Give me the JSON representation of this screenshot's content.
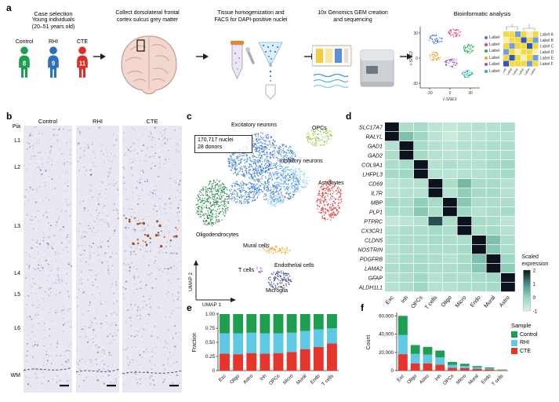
{
  "panel_labels": {
    "a": "a",
    "b": "b",
    "c": "c",
    "d": "d",
    "e": "e",
    "f": "f"
  },
  "panel_a": {
    "case_selection": {
      "title": "Case selection",
      "subtitle_lines": [
        "Young individuals",
        "(20–51 years old)"
      ],
      "groups": [
        {
          "name": "Control",
          "count": "8",
          "color": "#1e9e50"
        },
        {
          "name": "RHI",
          "count": "9",
          "color": "#2a6fc0"
        },
        {
          "name": "CTE",
          "count": "11",
          "color": "#d9312a"
        }
      ]
    },
    "step2_lines": [
      "Collect dorsolateral frontal",
      "cortex sulcus grey matter"
    ],
    "step3_lines": [
      "Tissue homogenization and",
      "FACS for DAPI-positive nuclei"
    ],
    "step4_lines": [
      "10x Genomics GEM creation",
      "and sequencing"
    ],
    "step5_title": "Bioinformatic analysis",
    "tsne": {
      "xlabel": "t-SNE1",
      "ylabel": "t-SNE2",
      "yticks": [
        "30",
        "0",
        "-30"
      ],
      "xticks": [
        "-30",
        "0",
        "30"
      ],
      "legend_entries": [
        "Label",
        "Label",
        "Label",
        "Label",
        "Label",
        "Label"
      ],
      "cluster_colors": [
        "#4a76d8",
        "#e0457b",
        "#2fae62",
        "#f0a32a",
        "#9057c8",
        "#27b5b0"
      ]
    },
    "mini_heatmap": {
      "row_labels": [
        "Label A",
        "Label B",
        "Label C",
        "Label D",
        "Label E",
        "Label F"
      ],
      "col_labels": [
        "Label",
        "Label",
        "Label",
        "Label",
        "Label",
        "Label"
      ],
      "palette": [
        "#f5d940",
        "#faf0b4",
        "#6f9fe0",
        "#2f58b8"
      ],
      "cells": [
        [
          0,
          0,
          2,
          0,
          1,
          0
        ],
        [
          1,
          0,
          0,
          3,
          0,
          2
        ],
        [
          0,
          2,
          0,
          0,
          3,
          0
        ],
        [
          2,
          0,
          1,
          0,
          0,
          1
        ],
        [
          0,
          3,
          0,
          1,
          0,
          2
        ],
        [
          3,
          0,
          0,
          0,
          2,
          0
        ]
      ]
    }
  },
  "panel_b": {
    "columns": [
      "Control",
      "RHI",
      "CTE"
    ],
    "layers": [
      "Pia",
      "L1",
      "L2",
      "L3",
      "L4",
      "L5",
      "L6",
      "WM"
    ]
  },
  "chart_data": [
    {
      "id": "umap-celltypes",
      "type": "scatter",
      "xlabel": "UMAP 1",
      "ylabel": "UMAP 2",
      "annotations": [
        "170,717 nuclei",
        "28 donors"
      ],
      "clusters": [
        {
          "name": "Excitatory neurons",
          "color": "#3579d8"
        },
        {
          "name": "Inhibitory neurons",
          "color": "#8fd0ec"
        },
        {
          "name": "OPCs",
          "color": "#97c93d"
        },
        {
          "name": "Astrocytes",
          "color": "#e22c2c"
        },
        {
          "name": "Oligodendrocytes",
          "color": "#1a7d3c"
        },
        {
          "name": "Mural cells",
          "color": "#f59b20"
        },
        {
          "name": "Endothelial cells",
          "color": "#e8b32a"
        },
        {
          "name": "T cells",
          "color": "#9b59c9"
        },
        {
          "name": "Microglia",
          "color": "#27348b"
        }
      ]
    },
    {
      "id": "marker-gene-heatmap",
      "type": "heatmap",
      "rows": [
        "SLC17A7",
        "RALYL",
        "GAD1",
        "GAD2",
        "COL9A1",
        "LHFPL3",
        "CD69",
        "IL7R",
        "MBP",
        "PLP1",
        "PTPRC",
        "CX3CR1",
        "CLDN5",
        "NOSTRIN",
        "PDGFRB",
        "LAMA2",
        "GFAP",
        "ALDH1L1"
      ],
      "columns": [
        "Exc",
        "Inh",
        "OPCs",
        "T cells",
        "Oligo",
        "Micro",
        "Endo",
        "Mural",
        "Astro"
      ],
      "legend_title_lines": [
        "Scaled",
        "expression"
      ],
      "legend_ticks": [
        2,
        1,
        0,
        -1
      ],
      "values": [
        [
          2.1,
          -0.3,
          -0.2,
          -0.5,
          -0.6,
          -0.5,
          -0.4,
          -0.4,
          -0.3
        ],
        [
          2.0,
          0.3,
          -0.1,
          -0.5,
          -0.7,
          -0.5,
          -0.5,
          -0.4,
          -0.4
        ],
        [
          -0.4,
          2.2,
          -0.2,
          -0.4,
          -0.5,
          -0.4,
          -0.4,
          -0.3,
          -0.3
        ],
        [
          -0.3,
          2.1,
          -0.2,
          -0.4,
          -0.5,
          -0.4,
          -0.4,
          -0.3,
          -0.3
        ],
        [
          -0.3,
          -0.2,
          2.2,
          -0.4,
          -0.3,
          -0.4,
          -0.4,
          -0.2,
          -0.1
        ],
        [
          -0.2,
          -0.1,
          2.1,
          -0.4,
          -0.5,
          -0.4,
          -0.4,
          -0.3,
          -0.2
        ],
        [
          -0.5,
          -0.4,
          -0.4,
          2.2,
          -0.3,
          0.4,
          -0.2,
          -0.2,
          -0.4
        ],
        [
          -0.5,
          -0.4,
          -0.4,
          2.2,
          -0.4,
          0.1,
          -0.2,
          -0.2,
          -0.4
        ],
        [
          -0.2,
          -0.3,
          0.1,
          -0.2,
          2.0,
          0.2,
          -0.3,
          -0.3,
          -0.3
        ],
        [
          -0.3,
          -0.3,
          0.2,
          -0.3,
          2.1,
          -0.1,
          -0.4,
          -0.3,
          -0.2
        ],
        [
          -0.6,
          -0.5,
          -0.4,
          1.5,
          -0.3,
          2.0,
          -0.2,
          -0.3,
          -0.5
        ],
        [
          -0.4,
          -0.3,
          -0.3,
          -0.2,
          -0.3,
          2.2,
          -0.3,
          -0.2,
          -0.4
        ],
        [
          -0.4,
          -0.3,
          -0.3,
          -0.2,
          -0.3,
          -0.3,
          2.2,
          0.3,
          -0.3
        ],
        [
          -0.4,
          -0.3,
          -0.3,
          -0.3,
          -0.3,
          -0.2,
          2.2,
          0.2,
          -0.3
        ],
        [
          -0.4,
          -0.3,
          -0.2,
          -0.3,
          -0.4,
          -0.2,
          0.3,
          2.1,
          -0.1
        ],
        [
          -0.3,
          -0.2,
          -0.2,
          -0.3,
          -0.3,
          -0.2,
          0.2,
          2.0,
          0.1
        ],
        [
          -0.4,
          -0.3,
          -0.1,
          -0.4,
          -0.3,
          -0.3,
          -0.2,
          -0.1,
          2.2
        ],
        [
          -0.4,
          -0.3,
          -0.1,
          -0.4,
          -0.4,
          -0.3,
          -0.3,
          -0.2,
          2.2
        ]
      ]
    },
    {
      "id": "fraction-by-celltype",
      "type": "bar",
      "stacked": true,
      "ylabel": "Fraction",
      "ylim": [
        0,
        1
      ],
      "yticks": [
        0,
        0.25,
        0.5,
        0.75,
        1
      ],
      "ytick_labels": [
        "0",
        "0.25",
        "0.50",
        "0.75",
        "1.00"
      ],
      "categories": [
        "Exc",
        "Oligo",
        "Astro",
        "Inh",
        "OPCs",
        "Micro",
        "Mural",
        "Endo",
        "T cells"
      ],
      "series": [
        {
          "name": "CTE",
          "color": "#e6352b",
          "values": [
            0.3,
            0.29,
            0.31,
            0.3,
            0.31,
            0.33,
            0.38,
            0.42,
            0.48
          ]
        },
        {
          "name": "RHI",
          "color": "#5ec8e5",
          "values": [
            0.36,
            0.37,
            0.36,
            0.36,
            0.35,
            0.34,
            0.32,
            0.31,
            0.27
          ]
        },
        {
          "name": "Control",
          "color": "#1e9e50",
          "values": [
            0.34,
            0.34,
            0.33,
            0.34,
            0.34,
            0.33,
            0.3,
            0.27,
            0.25
          ]
        }
      ]
    },
    {
      "id": "count-by-celltype",
      "type": "bar",
      "stacked": true,
      "ylabel": "Count",
      "ylim": [
        0,
        62000
      ],
      "yticks": [
        0,
        20000,
        40000,
        60000
      ],
      "ytick_labels": [
        "0",
        "20,000",
        "40,000",
        "60,000"
      ],
      "categories": [
        "Exc",
        "Oligo",
        "Astro",
        "Inh",
        "OPCs",
        "Micro",
        "Mural",
        "Endo",
        "T cells"
      ],
      "legend_title": "Sample",
      "legend_order": [
        "Control",
        "RHI",
        "CTE"
      ],
      "series": [
        {
          "name": "CTE",
          "color": "#e6352b",
          "values": [
            18000,
            8000,
            8000,
            6500,
            3000,
            2600,
            2000,
            1500,
            600
          ]
        },
        {
          "name": "RHI",
          "color": "#5ec8e5",
          "values": [
            21000,
            10500,
            9500,
            8000,
            3200,
            2500,
            1600,
            1100,
            350
          ]
        },
        {
          "name": "Control",
          "color": "#1e9e50",
          "values": [
            21000,
            9500,
            8500,
            7500,
            3300,
            2400,
            1400,
            900,
            300
          ]
        }
      ]
    }
  ]
}
